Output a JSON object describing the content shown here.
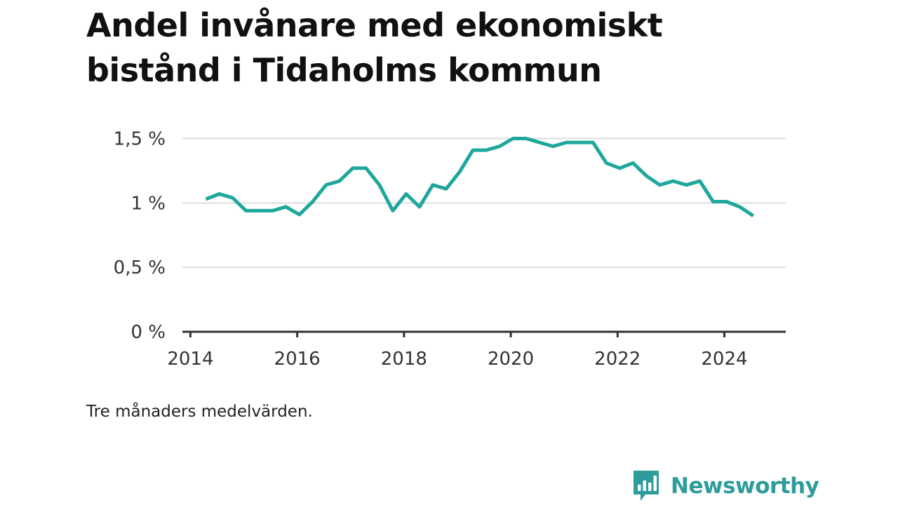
{
  "title": "Andel invånare med ekonomiskt bistånd i Tidaholms kommun",
  "note": "Tre månaders medelvärden.",
  "brand": {
    "name": "Newsworthy",
    "color": "#2f9c9c",
    "icon": "bar-chart-speech-bubble-icon"
  },
  "chart_data": {
    "type": "line",
    "title": "Andel invånare med ekonomiskt bistånd i Tidaholms kommun",
    "xlabel": "",
    "ylabel": "",
    "x_tick_labels": [
      "2014",
      "2016",
      "2018",
      "2020",
      "2022",
      "2024"
    ],
    "x_ticks": [
      2014,
      2016,
      2018,
      2020,
      2022,
      2024
    ],
    "y_ticks": [
      0,
      0.5,
      1,
      1.5
    ],
    "y_tick_labels": [
      "0 %",
      "0,5 %",
      "1 %",
      "1,5 %"
    ],
    "xlim": [
      2013.85,
      2025.15
    ],
    "ylim": [
      0,
      1.65
    ],
    "grid": true,
    "line_color": "#1fa79b",
    "series": [
      {
        "x": [
          2014.29,
          2014.54,
          2014.79,
          2015.04,
          2015.29,
          2015.54,
          2015.79,
          2016.04,
          2016.29,
          2016.54,
          2016.79,
          2017.04,
          2017.29,
          2017.54,
          2017.79,
          2018.04,
          2018.29,
          2018.54,
          2018.79,
          2019.04,
          2019.29,
          2019.54,
          2019.79,
          2020.04,
          2020.29,
          2020.54,
          2020.79,
          2021.04,
          2021.29,
          2021.54,
          2021.79,
          2022.04,
          2022.29,
          2022.54,
          2022.79,
          2023.04,
          2023.29,
          2023.54,
          2023.79,
          2024.04,
          2024.29,
          2024.54
        ],
        "values": [
          1.03,
          1.07,
          1.04,
          0.94,
          0.94,
          0.94,
          0.97,
          0.91,
          1.01,
          1.14,
          1.17,
          1.27,
          1.27,
          1.14,
          0.94,
          1.07,
          0.97,
          1.14,
          1.11,
          1.24,
          1.41,
          1.41,
          1.44,
          1.5,
          1.5,
          1.47,
          1.44,
          1.47,
          1.47,
          1.47,
          1.31,
          1.27,
          1.31,
          1.21,
          1.14,
          1.17,
          1.14,
          1.17,
          1.01,
          1.01,
          0.97,
          0.9
        ]
      }
    ]
  }
}
